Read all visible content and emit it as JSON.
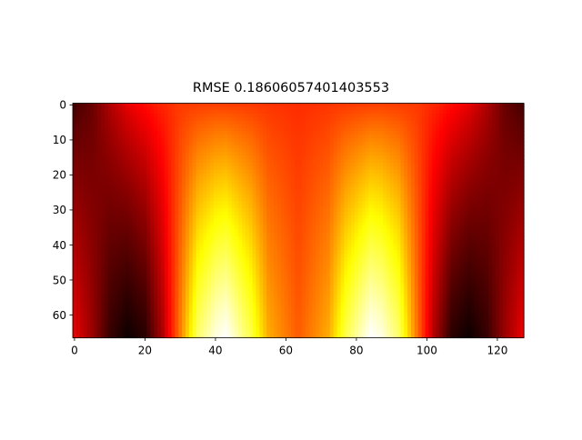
{
  "chart_data": {
    "type": "heatmap",
    "title": "RMSE 0.18606057401403553",
    "xlabel": "",
    "ylabel": "",
    "colormap": "hot",
    "grid": false,
    "n_cols": 128,
    "n_rows": 67,
    "xlim": [
      -0.5,
      127.5
    ],
    "ylim": [
      66.5,
      -0.5
    ],
    "x_ticks": [
      0,
      20,
      40,
      60,
      80,
      100,
      120
    ],
    "y_ticks": [
      0,
      10,
      20,
      30,
      40,
      50,
      60
    ],
    "value_range": [
      0,
      1
    ],
    "field_description": "symmetric pattern about x=63.5: dark bands near x≈15 and x≈110 strongest at bottom, bright yellow-white lobes near x≈42 and x≈85 at bottom, orange background at top",
    "profile_top": {
      "x": [
        0,
        5,
        10,
        15,
        20,
        25,
        30,
        40,
        50,
        63.5
      ],
      "values": [
        0.1,
        0.15,
        0.25,
        0.33,
        0.38,
        0.42,
        0.45,
        0.46,
        0.45,
        0.43
      ]
    },
    "profile_bottom": {
      "x": [
        0,
        5,
        10,
        15,
        20,
        25,
        30,
        35,
        40,
        43,
        50,
        55,
        63.5
      ],
      "values": [
        0.33,
        0.22,
        0.08,
        0.02,
        0.06,
        0.25,
        0.55,
        0.85,
        0.97,
        1.0,
        0.82,
        0.62,
        0.5
      ]
    }
  },
  "colors": {
    "background": "#ffffff",
    "axis": "#000000"
  }
}
